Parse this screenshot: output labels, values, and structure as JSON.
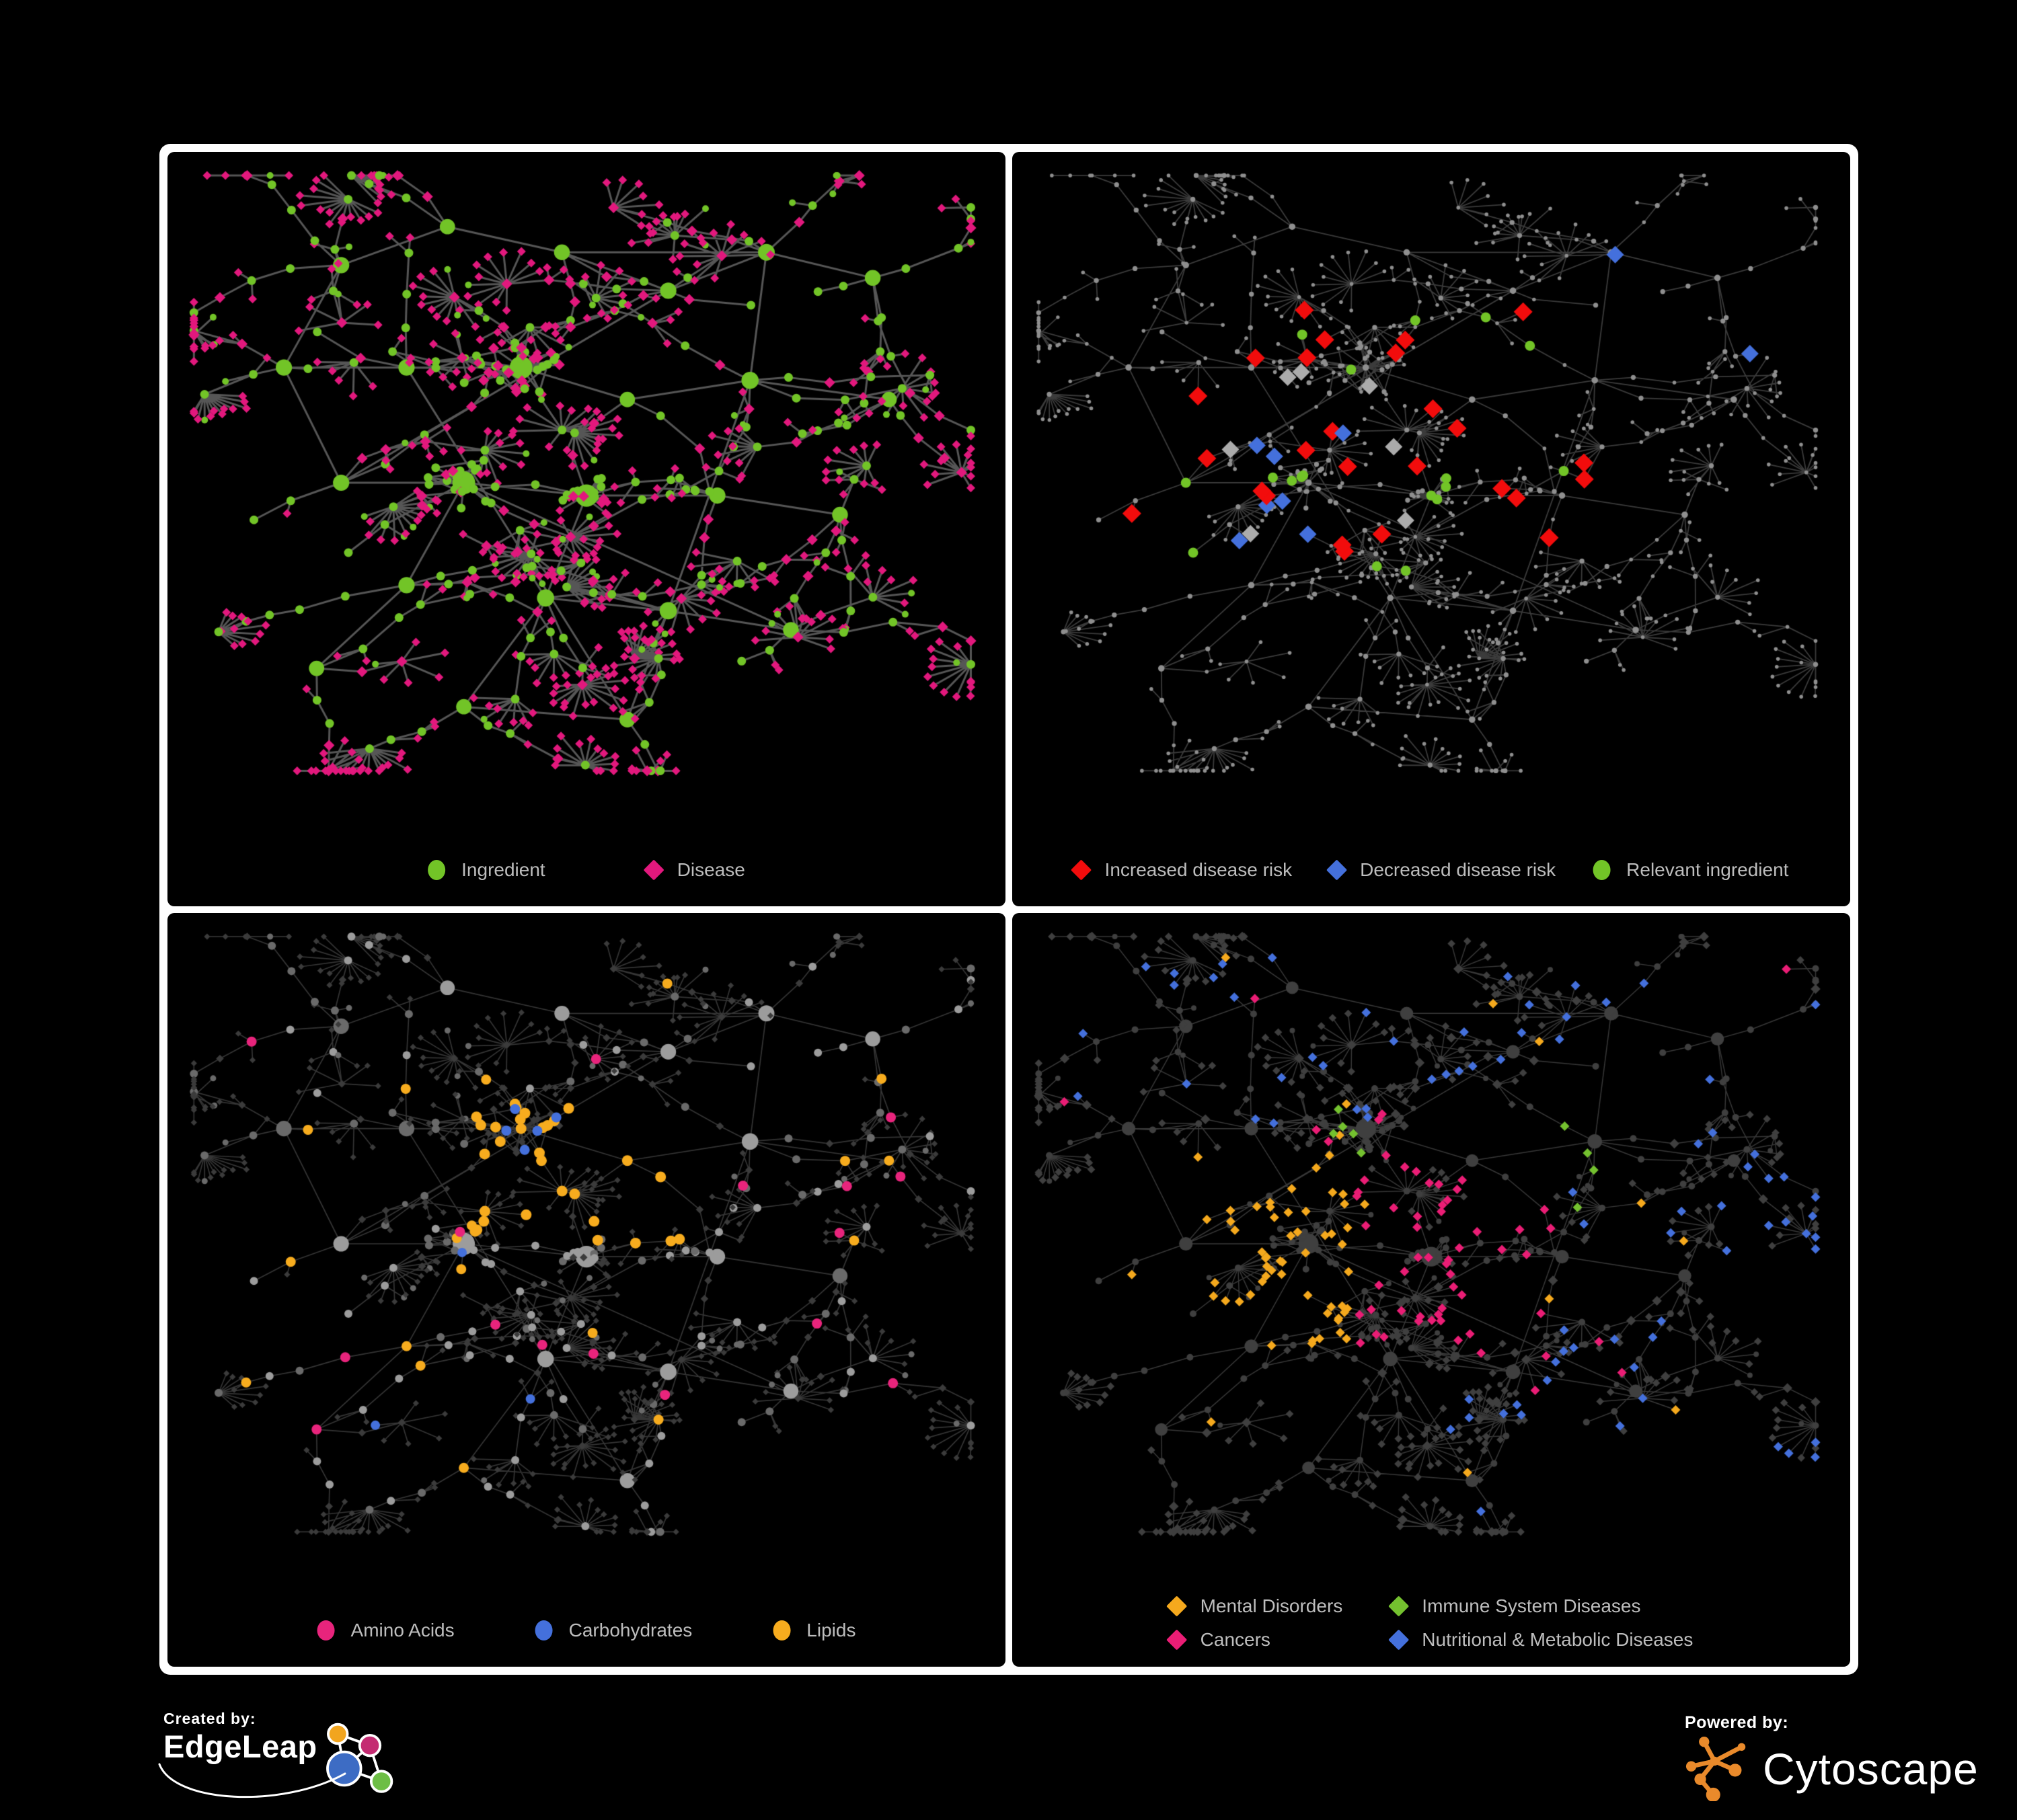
{
  "page": {
    "bg": "#000000",
    "frame": "#FFFFFF",
    "legend_text_color": "#BDBDBD"
  },
  "network_layout": {
    "seed": 20,
    "anchors": [
      [
        0.2,
        0.16
      ],
      [
        0.33,
        0.1
      ],
      [
        0.47,
        0.14
      ],
      [
        0.6,
        0.2
      ],
      [
        0.72,
        0.14
      ],
      [
        0.85,
        0.18
      ],
      [
        0.13,
        0.32
      ],
      [
        0.28,
        0.32
      ],
      [
        0.42,
        0.32
      ],
      [
        0.55,
        0.37
      ],
      [
        0.7,
        0.34
      ],
      [
        0.87,
        0.37
      ],
      [
        0.2,
        0.5
      ],
      [
        0.35,
        0.5
      ],
      [
        0.5,
        0.52
      ],
      [
        0.66,
        0.52
      ],
      [
        0.81,
        0.55
      ],
      [
        0.28,
        0.66
      ],
      [
        0.45,
        0.68
      ],
      [
        0.6,
        0.7
      ],
      [
        0.75,
        0.73
      ],
      [
        0.35,
        0.85
      ],
      [
        0.55,
        0.87
      ],
      [
        0.17,
        0.79
      ]
    ],
    "cluster_anchors": [
      8,
      13,
      14
    ],
    "cluster_sizes": [
      26,
      20,
      14
    ],
    "cluster_radii": [
      0.055,
      0.05,
      0.038
    ]
  },
  "panels": [
    {
      "id": "ingredient-disease",
      "legend": {
        "layout": "row",
        "items": [
          {
            "label": "Ingredient",
            "shape": "circle",
            "color": "#72C427"
          },
          {
            "label": "Disease",
            "shape": "diamond",
            "color": "#E2187D"
          }
        ]
      },
      "net": {
        "seed": 101,
        "edge": {
          "color": "#6E6E6E",
          "alpha": 0.78,
          "width": 3.0
        },
        "base": {
          "diamond": {
            "color": "#E2187D",
            "size": 6.5
          },
          "circle": {
            "color": "#72C427",
            "sizes": {
              "hub": 10,
              "mid": 6.5,
              "leaf": 5
            }
          }
        },
        "rules": []
      }
    },
    {
      "id": "disease-risk",
      "legend": {
        "layout": "row",
        "items": [
          {
            "label": "Increased disease risk",
            "shape": "diamond",
            "color": "#F20C0C"
          },
          {
            "label": "Decreased disease risk",
            "shape": "diamond",
            "color": "#4470DC"
          },
          {
            "label": "Relevant ingredient",
            "shape": "circle",
            "color": "#72C427"
          }
        ]
      },
      "net": {
        "seed": 202,
        "edge": {
          "color": "#6C6C6C",
          "alpha": 0.55,
          "width": 1.8
        },
        "base": {
          "diamond": {
            "color": "#8F8F8F",
            "as_dot": true,
            "size": 2.8
          },
          "circle": {
            "color": "#8F8F8F",
            "dot": 3.2
          }
        },
        "rules": [
          {
            "shape": "diamond",
            "target": "diamond",
            "color": "#F20C0C",
            "size": 14,
            "count": 26,
            "region": [
              0.13,
              0.22,
              0.72,
              0.62
            ]
          },
          {
            "shape": "diamond",
            "target": "diamond",
            "color": "#ABABAB",
            "size": 13,
            "count": 7,
            "region": [
              0.2,
              0.28,
              0.62,
              0.6
            ]
          },
          {
            "shape": "diamond",
            "target": "diamond",
            "color": "#4470DC",
            "size": 13,
            "count": 7,
            "region": [
              0.12,
              0.28,
              0.42,
              0.6
            ]
          },
          {
            "shape": "diamond",
            "target": "diamond",
            "color": "#4470DC",
            "size": 13,
            "count": 2,
            "region": [
              0.72,
              0.12,
              0.97,
              0.3
            ]
          },
          {
            "shape": "circle",
            "target": "circle",
            "color": "#72C427",
            "size": 7.5,
            "count": 18,
            "region": [
              0.08,
              0.18,
              0.68,
              0.68
            ]
          }
        ]
      }
    },
    {
      "id": "ingredient-classes",
      "legend": {
        "layout": "row",
        "items": [
          {
            "label": "Amino Acids",
            "shape": "circle",
            "color": "#E8247C"
          },
          {
            "label": "Carbohydrates",
            "shape": "circle",
            "color": "#4470DC"
          },
          {
            "label": "Lipids",
            "shape": "circle",
            "color": "#F7AC1E"
          }
        ]
      },
      "net": {
        "seed": 303,
        "edge": {
          "color": "#9A9A9A",
          "alpha": 0.34,
          "width": 1.7
        },
        "base": {
          "diamond": {
            "color": "#3B3B3B",
            "size": 4.6
          },
          "circle": {
            "color": "#9C9C9C",
            "alt": "#6A6A6A",
            "sizes": {
              "hub": 9.5,
              "mid": 6,
              "leaf": 4.5
            }
          }
        },
        "rules": [
          {
            "shape": "circle",
            "target": "circle",
            "color": "#F7AC1E",
            "size": 8,
            "count": 30,
            "region": [
              0.36,
              0.26,
              0.62,
              0.5
            ]
          },
          {
            "shape": "circle",
            "target": "circle",
            "color": "#F7AC1E",
            "size": 7.5,
            "count": 18,
            "region": [
              0.08,
              0.08,
              0.92,
              0.88
            ]
          },
          {
            "shape": "circle",
            "target": "circle",
            "color": "#4470DC",
            "size": 7.5,
            "count": 9,
            "region": [
              0.38,
              0.28,
              0.6,
              0.48
            ]
          },
          {
            "shape": "circle",
            "target": "circle",
            "color": "#4470DC",
            "size": 7,
            "count": 3,
            "region": [
              0.08,
              0.5,
              0.95,
              0.85
            ]
          },
          {
            "shape": "circle",
            "target": "circle",
            "color": "#E8247C",
            "size": 7.5,
            "count": 16,
            "region": [
              0.05,
              0.12,
              0.95,
              0.9
            ]
          }
        ]
      }
    },
    {
      "id": "disease-classes",
      "legend": {
        "layout": "grid",
        "items": [
          {
            "label": "Mental Disorders",
            "shape": "diamond",
            "color": "#F5A91D"
          },
          {
            "label": "Immune System Diseases",
            "shape": "diamond",
            "color": "#74C12F"
          },
          {
            "label": "Cancers",
            "shape": "diamond",
            "color": "#EA1D75"
          },
          {
            "label": "Nutritional & Metabolic Diseases",
            "shape": "diamond",
            "color": "#4470DC"
          }
        ]
      },
      "net": {
        "seed": 404,
        "edge": {
          "color": "#9A9A9A",
          "alpha": 0.36,
          "width": 1.5
        },
        "base": {
          "diamond": {
            "color": "#3F3F3F",
            "size": 5.8
          },
          "circle": {
            "color": "#3F3F3F",
            "sizes": {
              "hub": 8,
              "mid": 5,
              "leaf": 4
            }
          }
        },
        "rules": [
          {
            "shape": "diamond",
            "target": "diamond",
            "color": "#F5A91D",
            "size": 7,
            "count": 80,
            "region": [
              0.12,
              0.36,
              0.4,
              0.66
            ]
          },
          {
            "shape": "diamond",
            "target": "diamond",
            "color": "#F5A91D",
            "size": 7,
            "count": 12,
            "region": [
              0.05,
              0.05,
              0.95,
              0.92
            ]
          },
          {
            "shape": "diamond",
            "target": "diamond",
            "color": "#EA1D75",
            "size": 7,
            "count": 50,
            "region": [
              0.4,
              0.36,
              0.66,
              0.68
            ]
          },
          {
            "shape": "diamond",
            "target": "diamond",
            "color": "#EA1D75",
            "size": 7,
            "count": 10,
            "region": [
              0.05,
              0.05,
              0.95,
              0.92
            ]
          },
          {
            "shape": "diamond",
            "target": "diamond",
            "color": "#4470DC",
            "size": 7,
            "count": 55,
            "region": [
              0.52,
              0.05,
              0.97,
              0.92
            ]
          },
          {
            "shape": "diamond",
            "target": "diamond",
            "color": "#4470DC",
            "size": 7,
            "count": 22,
            "region": [
              0.05,
              0.05,
              0.55,
              0.32
            ]
          },
          {
            "shape": "diamond",
            "target": "diamond",
            "color": "#74C12F",
            "size": 7,
            "count": 9,
            "region": [
              0.33,
              0.28,
              0.7,
              0.6
            ]
          }
        ]
      }
    }
  ],
  "footer": {
    "created_by": "Created by:",
    "edgeleap": "EdgeLeap",
    "powered_by": "Powered by:",
    "cytoscape": "Cytoscape",
    "cytoscape_orange": "#E98A2B",
    "edgeleap_node_colors": [
      "#F2A51E",
      "#C42B72",
      "#3D6CC4",
      "#6DBE45"
    ]
  }
}
